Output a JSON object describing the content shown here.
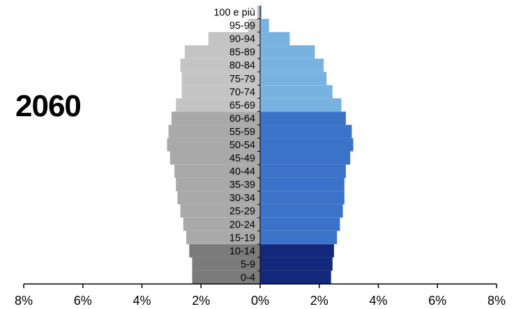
{
  "year_label": "2060",
  "chart_data": {
    "type": "bar",
    "orientation": "horizontal",
    "subtype": "population-pyramid",
    "title": "",
    "xlabel": "",
    "ylabel": "",
    "xlim": [
      -8,
      8
    ],
    "xticks": [
      -8,
      -6,
      -4,
      -2,
      0,
      2,
      4,
      6,
      8
    ],
    "xtick_labels": [
      "8%",
      "6%",
      "4%",
      "2%",
      "0%",
      "2%",
      "4%",
      "6%",
      "8%"
    ],
    "grid": false,
    "categories": [
      "0-4",
      "5-9",
      "10-14",
      "15-19",
      "20-24",
      "25-29",
      "30-34",
      "35-39",
      "40-44",
      "45-49",
      "50-54",
      "55-59",
      "60-64",
      "65-69",
      "70-74",
      "75-79",
      "80-84",
      "85-89",
      "90-94",
      "95-99",
      "100 e più"
    ],
    "series": [
      {
        "side": "left",
        "values": [
          2.3,
          2.3,
          2.4,
          2.5,
          2.6,
          2.7,
          2.8,
          2.85,
          2.9,
          3.05,
          3.15,
          3.1,
          3.0,
          2.85,
          2.65,
          2.65,
          2.7,
          2.55,
          1.75,
          0.4,
          0.1
        ]
      },
      {
        "side": "right",
        "values": [
          2.4,
          2.45,
          2.5,
          2.6,
          2.7,
          2.8,
          2.85,
          2.85,
          2.9,
          3.05,
          3.15,
          3.1,
          2.9,
          2.75,
          2.45,
          2.25,
          2.15,
          1.85,
          1.0,
          0.3,
          0.05
        ]
      }
    ],
    "colors": {
      "left_young": "#7b7b7b",
      "left_adult": "#a9a9a9",
      "left_old": "#c4c4c4",
      "right_young": "#13287a",
      "right_adult": "#3a73c7",
      "right_old": "#77b2e0",
      "axis": "#000000"
    }
  }
}
